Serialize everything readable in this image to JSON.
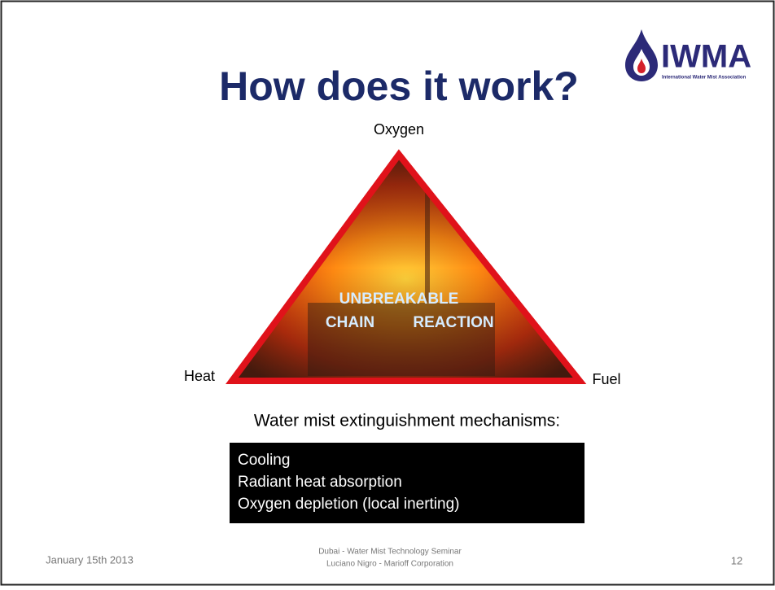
{
  "header": {
    "title": "How does it work?",
    "logo": {
      "name": "IWMA",
      "subtitle": "International Water Mist Association"
    }
  },
  "triangle": {
    "top": "Oxygen",
    "left": "Heat",
    "right": "Fuel",
    "center": [
      "UNBREAKABLE",
      "CHAIN",
      "REACTION"
    ]
  },
  "mechanisms": {
    "heading": "Water mist extinguishment mechanisms:",
    "items": [
      "Cooling",
      "Radiant heat absorption",
      "Oxygen depletion (local inerting)"
    ]
  },
  "footer": {
    "date": "January 15th 2013",
    "center": [
      "Dubai - Water Mist  Technology  Seminar",
      "Luciano Nigro - Marioff Corporation"
    ],
    "page": "12"
  }
}
